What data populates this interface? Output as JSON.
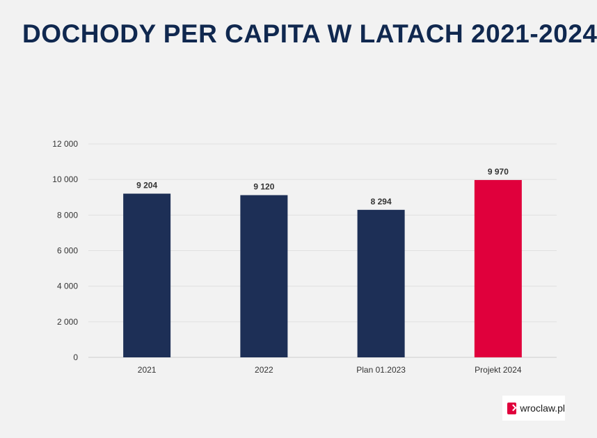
{
  "title": "DOCHODY PER CAPITA W LATACH 2021-2024",
  "colors": {
    "bar": "#1d2f56",
    "highlight": "#e0003c",
    "title": "#10284f",
    "grid": "#e0e0e0"
  },
  "logo": {
    "text": "wroclaw.pl",
    "icon": "arrow-right-icon"
  },
  "chart_data": {
    "type": "bar",
    "title": "DOCHODY PER CAPITA W LATACH 2021-2024",
    "xlabel": "",
    "ylabel": "",
    "categories": [
      "2021",
      "2022",
      "Plan 01.2023",
      "Projekt 2024"
    ],
    "values": [
      9204,
      9120,
      8294,
      9970
    ],
    "value_labels": [
      "9 204",
      "9 120",
      "8 294",
      "9 970"
    ],
    "highlight_index": 3,
    "ylim": [
      0,
      12000
    ],
    "yticks": [
      0,
      2000,
      4000,
      6000,
      8000,
      10000,
      12000
    ],
    "ytick_labels": [
      "0",
      "2 000",
      "4 000",
      "6 000",
      "8 000",
      "10 000",
      "12 000"
    ],
    "grid": true,
    "legend": "none"
  }
}
